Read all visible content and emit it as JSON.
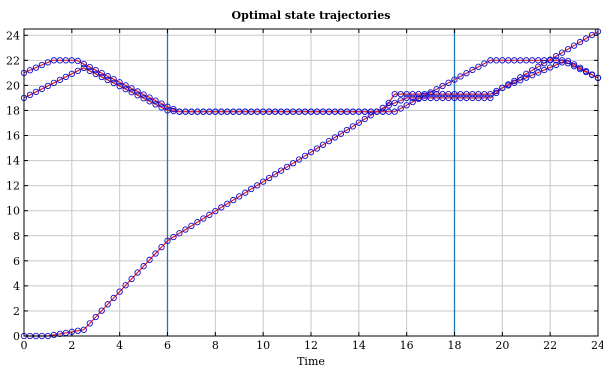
{
  "chart_data": {
    "type": "line",
    "title": "Optimal state trajectories",
    "xlabel": "Time",
    "ylabel": "",
    "xlim": [
      0,
      24
    ],
    "ylim": [
      0,
      24.5
    ],
    "xticks": [
      0,
      2,
      4,
      6,
      8,
      10,
      12,
      14,
      16,
      18,
      20,
      22,
      24
    ],
    "yticks": [
      0,
      2,
      4,
      6,
      8,
      10,
      12,
      14,
      16,
      18,
      20,
      22,
      24
    ],
    "grid": true,
    "legend": "none",
    "marker_spacing": 0.25,
    "vlines": [
      {
        "x": 6,
        "color": "#1f77b4"
      },
      {
        "x": 18,
        "color": "#1f77b4"
      }
    ],
    "series": [
      {
        "line_color": "#e0202e",
        "marker_color": "#1010d0",
        "points": [
          [
            0,
            21
          ],
          [
            1.2,
            22
          ],
          [
            2.2,
            22
          ],
          [
            6,
            18.3
          ],
          [
            6.5,
            17.9
          ],
          [
            15.5,
            17.9
          ],
          [
            19.5,
            22
          ],
          [
            22.5,
            22
          ],
          [
            24,
            20.6
          ]
        ]
      },
      {
        "line_color": "#e0202e",
        "marker_color": "#1010d0",
        "points": [
          [
            0,
            19
          ],
          [
            2.5,
            21.4
          ],
          [
            6,
            18
          ],
          [
            6.5,
            17.9
          ],
          [
            15,
            17.9
          ],
          [
            15.5,
            19.3
          ],
          [
            19.5,
            19.3
          ],
          [
            20,
            19.8
          ],
          [
            24,
            24.3
          ]
        ]
      },
      {
        "line_color": "#e0202e",
        "marker_color": "#1010d0",
        "points": [
          [
            0,
            0
          ],
          [
            1,
            0
          ],
          [
            2.5,
            0.5
          ],
          [
            6,
            7.6
          ],
          [
            6.5,
            8.2
          ],
          [
            15,
            18.2
          ],
          [
            16,
            19
          ],
          [
            19.5,
            19
          ],
          [
            20,
            19.8
          ],
          [
            22.7,
            22
          ],
          [
            24,
            20.6
          ]
        ]
      }
    ]
  }
}
